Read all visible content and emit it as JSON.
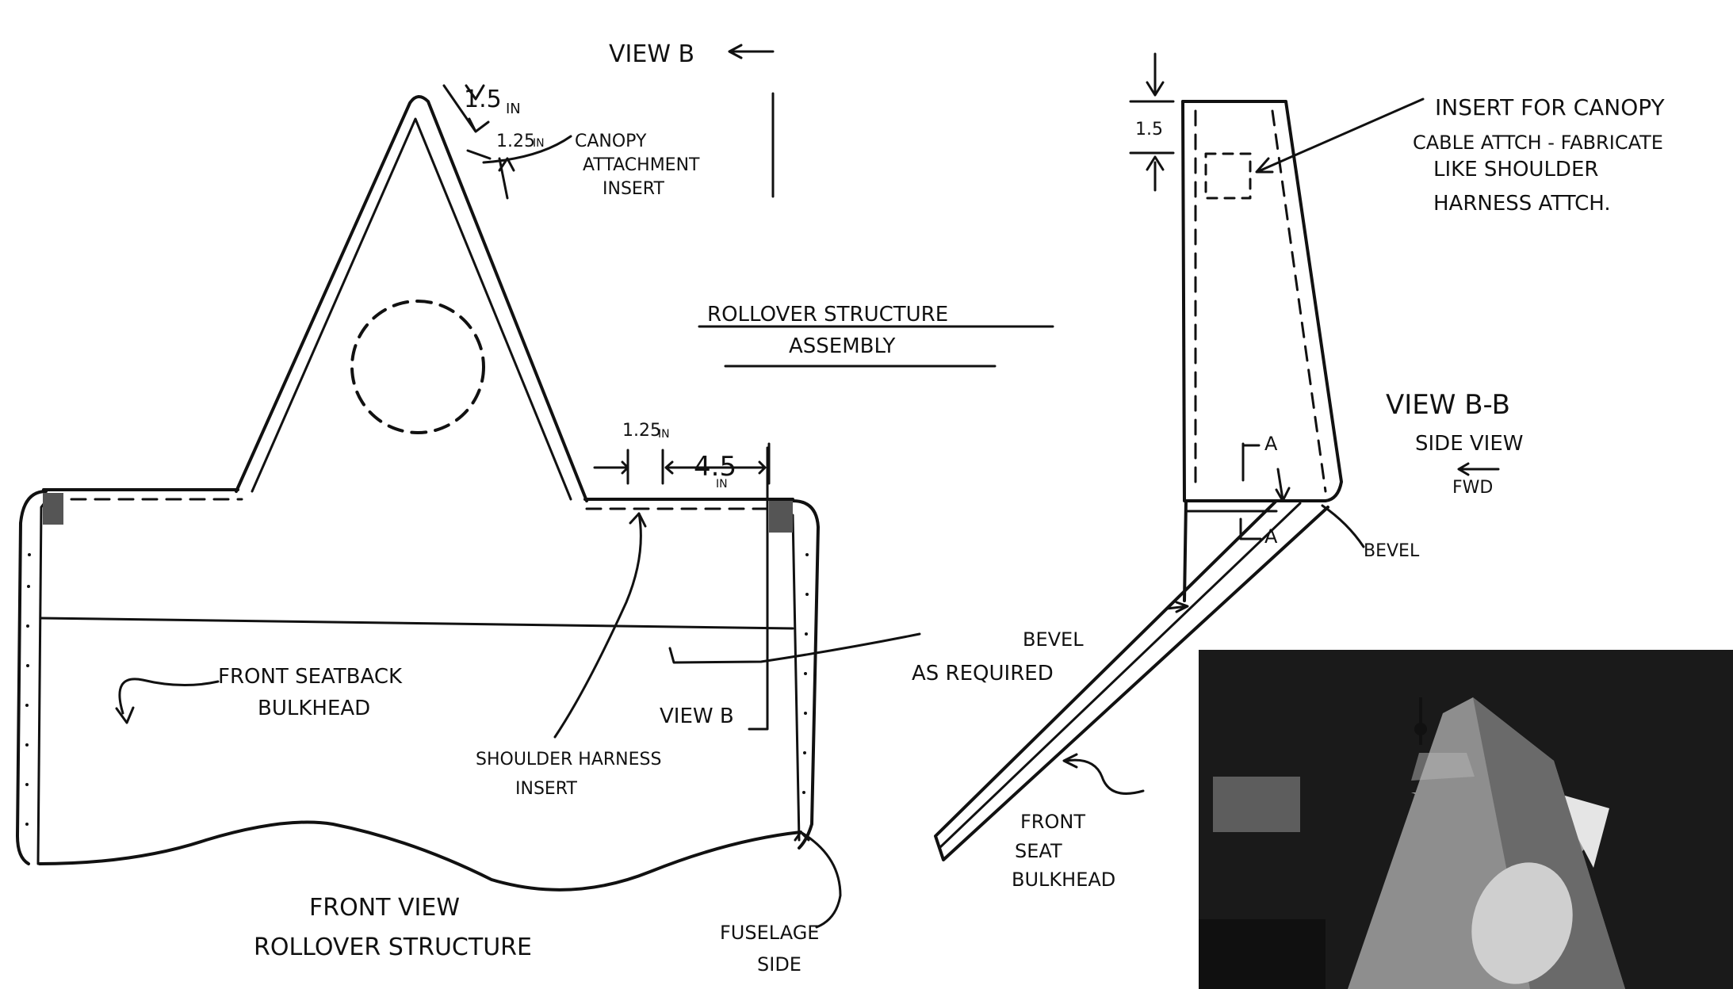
{
  "front_view": {
    "view_b_top": "VIEW B",
    "dim_1_5": "1.5",
    "dim_1_5_unit": "IN",
    "dim_1_25_top": "1.25",
    "dim_1_25_top_unit": "IN",
    "canopy_insert": [
      "CANOPY",
      "ATTACHMENT",
      "INSERT"
    ],
    "dim_1_25_bottom": "1.25",
    "dim_1_25_bottom_unit": "IN",
    "dim_4_5": "4.5",
    "dim_4_5_unit": "IN",
    "front_seatback": [
      "FRONT SEATBACK",
      "BULKHEAD"
    ],
    "view_b_side": "VIEW B",
    "shoulder_harness": [
      "SHOULDER HARNESS",
      "INSERT"
    ],
    "fuselage_side": [
      "FUSELAGE",
      "SIDE"
    ],
    "caption": [
      "FRONT VIEW",
      "ROLLOVER STRUCTURE"
    ]
  },
  "assembly_title": [
    "ROLLOVER STRUCTURE",
    "ASSEMBLY"
  ],
  "side_view": {
    "dim_1_5": "1.5",
    "canopy_cable_note": [
      "INSERT FOR CANOPY",
      "CABLE ATTCH - FABRICATE",
      "LIKE SHOULDER",
      "HARNESS ATTCH."
    ],
    "section_a_top": "A",
    "section_a_bottom": "A",
    "bevel": "BEVEL",
    "bevel_required": [
      "BEVEL",
      "AS REQUIRED"
    ],
    "front_seat_bulkhead": [
      "FRONT",
      "SEAT",
      "BULKHEAD"
    ],
    "caption": [
      "VIEW B-B",
      "SIDE VIEW"
    ],
    "fwd": "FWD"
  },
  "colors": {
    "ink": "#111111",
    "paper": "#ffffff",
    "photo_dark": "#1a1a1a"
  }
}
